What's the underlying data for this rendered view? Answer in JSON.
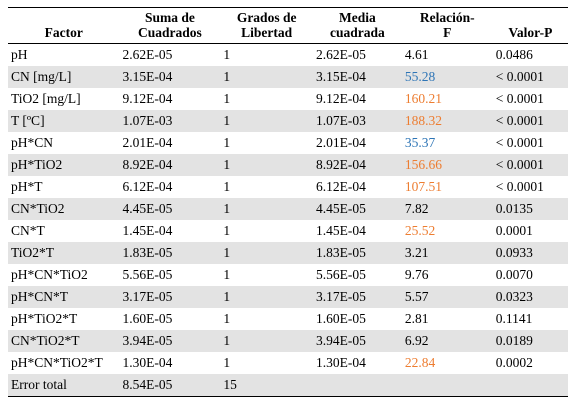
{
  "headers": {
    "factor": "Factor",
    "ss": [
      "Suma de",
      "Cuadrados"
    ],
    "df": [
      "Grados de",
      "Libertad"
    ],
    "ms": [
      "Media",
      "cuadrada"
    ],
    "f": [
      "Relación-",
      "F"
    ],
    "p": "Valor-P"
  },
  "colors": {
    "blue": "#2e75b6",
    "orange": "#ed7d31",
    "shade": "#e3e3e3"
  },
  "rows": [
    {
      "factor": "pH",
      "ss": "2.62E-05",
      "df": "1",
      "ms": "2.62E-05",
      "f": "4.61",
      "f_color": "",
      "p": "0.0486",
      "shade": false
    },
    {
      "factor": "CN [mg/L]",
      "ss": "3.15E-04",
      "df": "1",
      "ms": "3.15E-04",
      "f": "55.28",
      "f_color": "blue",
      "p": "< 0.0001",
      "shade": true
    },
    {
      "factor": "TiO2 [mg/L]",
      "ss": "9.12E-04",
      "df": "1",
      "ms": "9.12E-04",
      "f": "160.21",
      "f_color": "orange",
      "p": "< 0.0001",
      "shade": false
    },
    {
      "factor": "T [ºC]",
      "ss": "1.07E-03",
      "df": "1",
      "ms": "1.07E-03",
      "f": "188.32",
      "f_color": "orange",
      "p": "< 0.0001",
      "shade": true
    },
    {
      "factor": "pH*CN",
      "ss": "2.01E-04",
      "df": "1",
      "ms": "2.01E-04",
      "f": "35.37",
      "f_color": "blue",
      "p": "< 0.0001",
      "shade": false
    },
    {
      "factor": "pH*TiO2",
      "ss": "8.92E-04",
      "df": "1",
      "ms": "8.92E-04",
      "f": "156.66",
      "f_color": "orange",
      "p": "< 0.0001",
      "shade": true
    },
    {
      "factor": "pH*T",
      "ss": "6.12E-04",
      "df": "1",
      "ms": "6.12E-04",
      "f": "107.51",
      "f_color": "orange",
      "p": "< 0.0001",
      "shade": false
    },
    {
      "factor": "CN*TiO2",
      "ss": "4.45E-05",
      "df": "1",
      "ms": "4.45E-05",
      "f": "7.82",
      "f_color": "",
      "p": "0.0135",
      "shade": true
    },
    {
      "factor": "CN*T",
      "ss": "1.45E-04",
      "df": "1",
      "ms": "1.45E-04",
      "f": "25.52",
      "f_color": "orange",
      "p": "0.0001",
      "shade": false
    },
    {
      "factor": "TiO2*T",
      "ss": "1.83E-05",
      "df": "1",
      "ms": "1.83E-05",
      "f": "3.21",
      "f_color": "",
      "p": "0.0933",
      "shade": true
    },
    {
      "factor": "pH*CN*TiO2",
      "ss": "5.56E-05",
      "df": "1",
      "ms": "5.56E-05",
      "f": "9.76",
      "f_color": "",
      "p": "0.0070",
      "shade": false
    },
    {
      "factor": "pH*CN*T",
      "ss": "3.17E-05",
      "df": "1",
      "ms": "3.17E-05",
      "f": "5.57",
      "f_color": "",
      "p": "0.0323",
      "shade": true
    },
    {
      "factor": "pH*TiO2*T",
      "ss": "1.60E-05",
      "df": "1",
      "ms": "1.60E-05",
      "f": "2.81",
      "f_color": "",
      "p": "0.1141",
      "shade": false
    },
    {
      "factor": "CN*TiO2*T",
      "ss": "3.94E-05",
      "df": "1",
      "ms": "3.94E-05",
      "f": "6.92",
      "f_color": "",
      "p": "0.0189",
      "shade": true
    },
    {
      "factor": "pH*CN*TiO2*T",
      "ss": "1.30E-04",
      "df": "1",
      "ms": "1.30E-04",
      "f": "22.84",
      "f_color": "orange",
      "p": "0.0002",
      "shade": false
    },
    {
      "factor": "Error total",
      "ss": "8.54E-05",
      "df": "15",
      "ms": "",
      "f": "",
      "f_color": "",
      "p": "",
      "shade": true
    }
  ]
}
